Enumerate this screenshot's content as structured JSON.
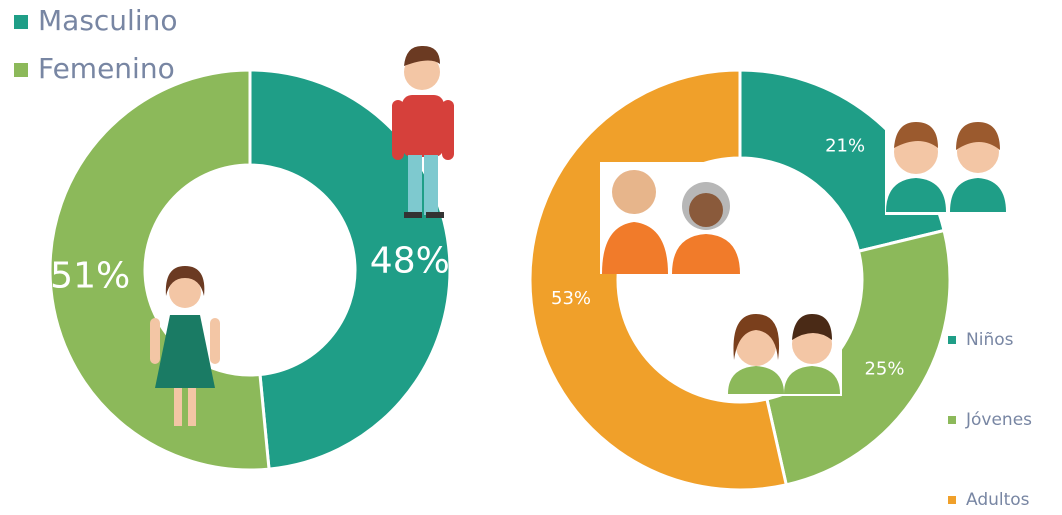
{
  "chart_data": [
    {
      "type": "pie",
      "donut": true,
      "legend": "top-left",
      "categories": [
        "Masculino",
        "Femenino"
      ],
      "values": [
        48,
        51
      ],
      "value_labels": [
        "48%",
        "51%"
      ],
      "colors": [
        "#1f9e87",
        "#8cb95a"
      ]
    },
    {
      "type": "pie",
      "donut": true,
      "legend": "right",
      "categories": [
        "Niños",
        "Jóvenes",
        "Adultos"
      ],
      "values": [
        21,
        25,
        53
      ],
      "value_labels": [
        "21%",
        "25%",
        "53%"
      ],
      "colors": [
        "#1f9e87",
        "#8cb95a",
        "#f0a02a"
      ]
    }
  ]
}
